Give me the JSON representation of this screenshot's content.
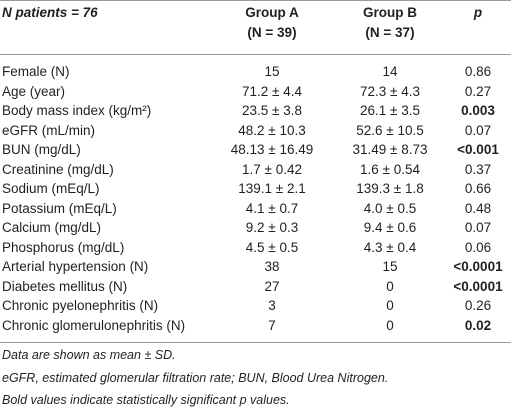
{
  "table": {
    "header": [
      "N patients = 76",
      "Group A",
      "Group B",
      "p"
    ],
    "header_sub": [
      null,
      "(N = 39)",
      "(N = 37)",
      null
    ],
    "rows": [
      [
        "Female (N)",
        "15",
        "14",
        "0.86"
      ],
      [
        "Age (year)",
        "71.2 ± 4.4",
        "72.3 ± 4.3",
        "0.27"
      ],
      [
        "Body mass index (kg/m²)",
        "23.5 ± 3.8",
        "26.1 ± 3.5",
        "0.003"
      ],
      [
        "eGFR (mL/min)",
        "48.2 ± 10.3",
        "52.6 ± 10.5",
        "0.07"
      ],
      [
        "BUN (mg/dL)",
        "48.13 ± 16.49",
        "31.49 ± 8.73",
        "<0.001"
      ],
      [
        "Creatinine (mg/dL)",
        "1.7 ± 0.42",
        "1.6 ± 0.54",
        "0.37"
      ],
      [
        "Sodium (mEq/L)",
        "139.1 ± 2.1",
        "139.3 ± 1.8",
        "0.66"
      ],
      [
        "Potassium (mEq/L)",
        "4.1 ± 0.7",
        "4.0 ± 0.5",
        "0.48"
      ],
      [
        "Calcium (mg/dL)",
        "9.2 ± 0.3",
        "9.4 ± 0.6",
        "0.07"
      ],
      [
        "Phosphorus (mg/dL)",
        "4.5 ± 0.5",
        "4.3 ± 0.4",
        "0.06"
      ],
      [
        "Arterial hypertension (N)",
        "38",
        "15",
        "<0.0001"
      ],
      [
        "Diabetes mellitus (N)",
        "27",
        "0",
        "<0.0001"
      ],
      [
        "Chronic pyelonephritis (N)",
        "3",
        "0",
        "0.26"
      ],
      [
        "Chronic glomerulonephritis (N)",
        "7",
        "0",
        "0.02"
      ]
    ],
    "bold_p": [
      false,
      false,
      true,
      false,
      true,
      false,
      false,
      false,
      false,
      false,
      true,
      true,
      false,
      true
    ]
  },
  "footnotes": [
    "Data are shown as mean ± SD.",
    "eGFR, estimated glomerular filtration rate; BUN, Blood Urea Nitrogen.",
    "Bold values indicate statistically significant p values."
  ]
}
